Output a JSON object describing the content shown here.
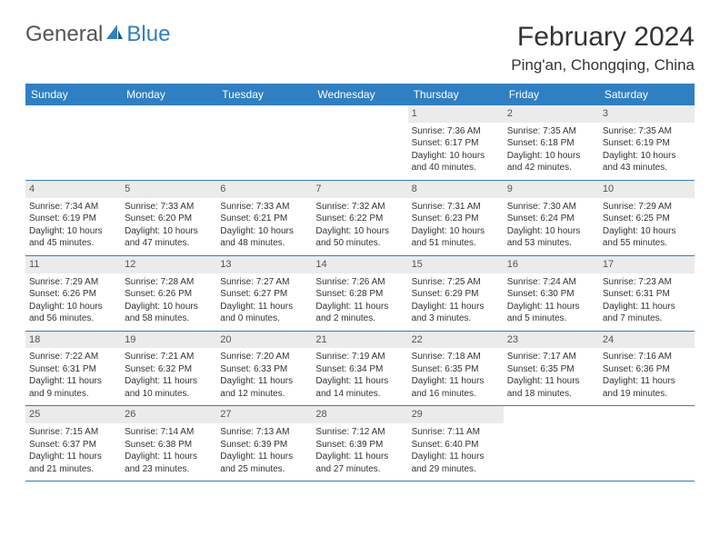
{
  "logo": {
    "general": "General",
    "blue": "Blue"
  },
  "title": "February 2024",
  "location": "Ping'an, Chongqing, China",
  "daynames": [
    "Sunday",
    "Monday",
    "Tuesday",
    "Wednesday",
    "Thursday",
    "Friday",
    "Saturday"
  ],
  "colors": {
    "header_bg": "#2f7fc3",
    "daynum_bg": "#ebebeb",
    "text": "#333333",
    "logo_gray": "#555555",
    "logo_blue": "#2f7fc3"
  },
  "weeks": [
    [
      null,
      null,
      null,
      null,
      {
        "n": "1",
        "sr": "Sunrise: 7:36 AM",
        "ss": "Sunset: 6:17 PM",
        "d1": "Daylight: 10 hours",
        "d2": "and 40 minutes."
      },
      {
        "n": "2",
        "sr": "Sunrise: 7:35 AM",
        "ss": "Sunset: 6:18 PM",
        "d1": "Daylight: 10 hours",
        "d2": "and 42 minutes."
      },
      {
        "n": "3",
        "sr": "Sunrise: 7:35 AM",
        "ss": "Sunset: 6:19 PM",
        "d1": "Daylight: 10 hours",
        "d2": "and 43 minutes."
      }
    ],
    [
      {
        "n": "4",
        "sr": "Sunrise: 7:34 AM",
        "ss": "Sunset: 6:19 PM",
        "d1": "Daylight: 10 hours",
        "d2": "and 45 minutes."
      },
      {
        "n": "5",
        "sr": "Sunrise: 7:33 AM",
        "ss": "Sunset: 6:20 PM",
        "d1": "Daylight: 10 hours",
        "d2": "and 47 minutes."
      },
      {
        "n": "6",
        "sr": "Sunrise: 7:33 AM",
        "ss": "Sunset: 6:21 PM",
        "d1": "Daylight: 10 hours",
        "d2": "and 48 minutes."
      },
      {
        "n": "7",
        "sr": "Sunrise: 7:32 AM",
        "ss": "Sunset: 6:22 PM",
        "d1": "Daylight: 10 hours",
        "d2": "and 50 minutes."
      },
      {
        "n": "8",
        "sr": "Sunrise: 7:31 AM",
        "ss": "Sunset: 6:23 PM",
        "d1": "Daylight: 10 hours",
        "d2": "and 51 minutes."
      },
      {
        "n": "9",
        "sr": "Sunrise: 7:30 AM",
        "ss": "Sunset: 6:24 PM",
        "d1": "Daylight: 10 hours",
        "d2": "and 53 minutes."
      },
      {
        "n": "10",
        "sr": "Sunrise: 7:29 AM",
        "ss": "Sunset: 6:25 PM",
        "d1": "Daylight: 10 hours",
        "d2": "and 55 minutes."
      }
    ],
    [
      {
        "n": "11",
        "sr": "Sunrise: 7:29 AM",
        "ss": "Sunset: 6:26 PM",
        "d1": "Daylight: 10 hours",
        "d2": "and 56 minutes."
      },
      {
        "n": "12",
        "sr": "Sunrise: 7:28 AM",
        "ss": "Sunset: 6:26 PM",
        "d1": "Daylight: 10 hours",
        "d2": "and 58 minutes."
      },
      {
        "n": "13",
        "sr": "Sunrise: 7:27 AM",
        "ss": "Sunset: 6:27 PM",
        "d1": "Daylight: 11 hours",
        "d2": "and 0 minutes."
      },
      {
        "n": "14",
        "sr": "Sunrise: 7:26 AM",
        "ss": "Sunset: 6:28 PM",
        "d1": "Daylight: 11 hours",
        "d2": "and 2 minutes."
      },
      {
        "n": "15",
        "sr": "Sunrise: 7:25 AM",
        "ss": "Sunset: 6:29 PM",
        "d1": "Daylight: 11 hours",
        "d2": "and 3 minutes."
      },
      {
        "n": "16",
        "sr": "Sunrise: 7:24 AM",
        "ss": "Sunset: 6:30 PM",
        "d1": "Daylight: 11 hours",
        "d2": "and 5 minutes."
      },
      {
        "n": "17",
        "sr": "Sunrise: 7:23 AM",
        "ss": "Sunset: 6:31 PM",
        "d1": "Daylight: 11 hours",
        "d2": "and 7 minutes."
      }
    ],
    [
      {
        "n": "18",
        "sr": "Sunrise: 7:22 AM",
        "ss": "Sunset: 6:31 PM",
        "d1": "Daylight: 11 hours",
        "d2": "and 9 minutes."
      },
      {
        "n": "19",
        "sr": "Sunrise: 7:21 AM",
        "ss": "Sunset: 6:32 PM",
        "d1": "Daylight: 11 hours",
        "d2": "and 10 minutes."
      },
      {
        "n": "20",
        "sr": "Sunrise: 7:20 AM",
        "ss": "Sunset: 6:33 PM",
        "d1": "Daylight: 11 hours",
        "d2": "and 12 minutes."
      },
      {
        "n": "21",
        "sr": "Sunrise: 7:19 AM",
        "ss": "Sunset: 6:34 PM",
        "d1": "Daylight: 11 hours",
        "d2": "and 14 minutes."
      },
      {
        "n": "22",
        "sr": "Sunrise: 7:18 AM",
        "ss": "Sunset: 6:35 PM",
        "d1": "Daylight: 11 hours",
        "d2": "and 16 minutes."
      },
      {
        "n": "23",
        "sr": "Sunrise: 7:17 AM",
        "ss": "Sunset: 6:35 PM",
        "d1": "Daylight: 11 hours",
        "d2": "and 18 minutes."
      },
      {
        "n": "24",
        "sr": "Sunrise: 7:16 AM",
        "ss": "Sunset: 6:36 PM",
        "d1": "Daylight: 11 hours",
        "d2": "and 19 minutes."
      }
    ],
    [
      {
        "n": "25",
        "sr": "Sunrise: 7:15 AM",
        "ss": "Sunset: 6:37 PM",
        "d1": "Daylight: 11 hours",
        "d2": "and 21 minutes."
      },
      {
        "n": "26",
        "sr": "Sunrise: 7:14 AM",
        "ss": "Sunset: 6:38 PM",
        "d1": "Daylight: 11 hours",
        "d2": "and 23 minutes."
      },
      {
        "n": "27",
        "sr": "Sunrise: 7:13 AM",
        "ss": "Sunset: 6:39 PM",
        "d1": "Daylight: 11 hours",
        "d2": "and 25 minutes."
      },
      {
        "n": "28",
        "sr": "Sunrise: 7:12 AM",
        "ss": "Sunset: 6:39 PM",
        "d1": "Daylight: 11 hours",
        "d2": "and 27 minutes."
      },
      {
        "n": "29",
        "sr": "Sunrise: 7:11 AM",
        "ss": "Sunset: 6:40 PM",
        "d1": "Daylight: 11 hours",
        "d2": "and 29 minutes."
      },
      null,
      null
    ]
  ]
}
